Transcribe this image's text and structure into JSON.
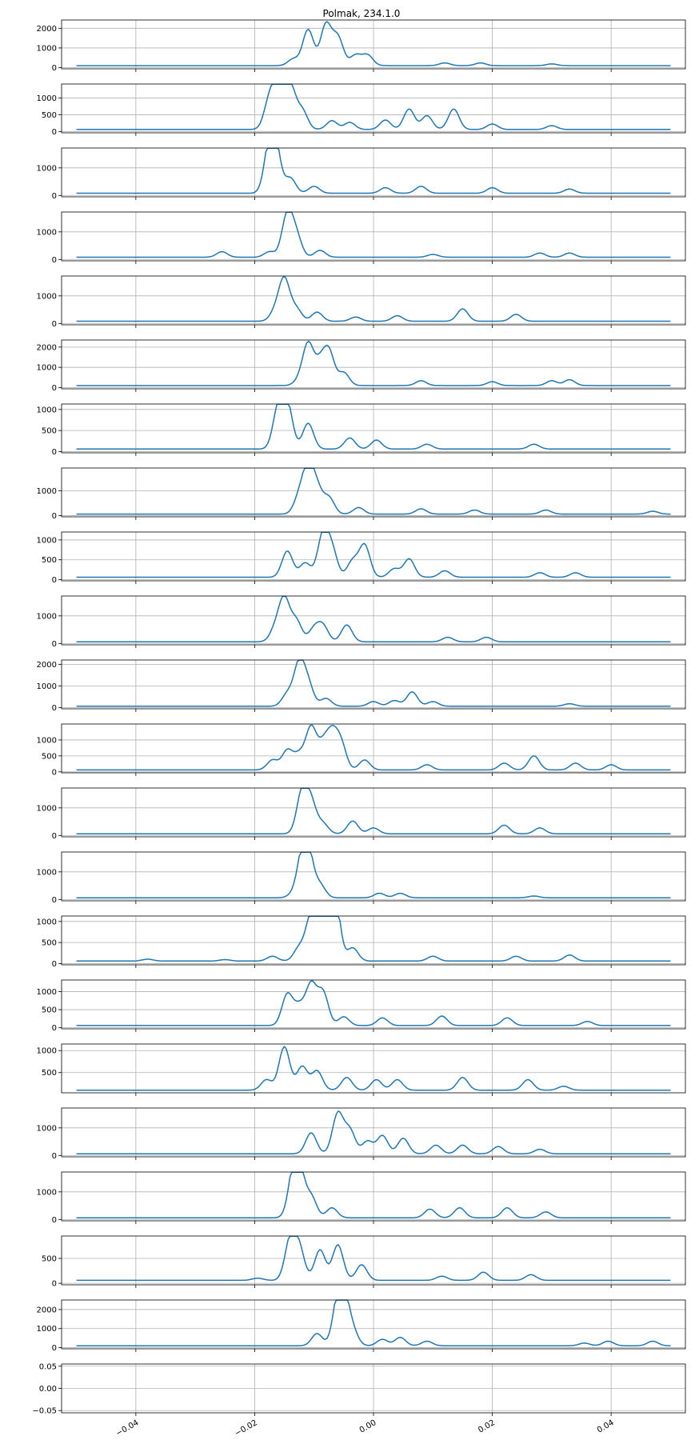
{
  "figure": {
    "title": "Polmak, 234.1.0"
  },
  "colors": {
    "line": "#1f77b4",
    "grid": "#b0b0b0",
    "axes": "#000000"
  },
  "chart_data": {
    "type": "line",
    "title": "Polmak, 234.1.0",
    "xlim": [
      -0.0525,
      0.0525
    ],
    "grid": true,
    "panels": [
      {
        "yticks": [
          0,
          1000,
          2000
        ],
        "ylim": [
          -60,
          2420
        ],
        "baseline": 100,
        "peaks": [
          [
            -0.0135,
            400
          ],
          [
            -0.011,
            1900
          ],
          [
            -0.008,
            2150
          ],
          [
            -0.006,
            1500
          ],
          [
            -0.003,
            600
          ],
          [
            -0.001,
            600
          ],
          [
            0.012,
            200
          ],
          [
            0.018,
            200
          ],
          [
            0.03,
            150
          ]
        ]
      },
      {
        "yticks": [
          0,
          500,
          1000
        ],
        "ylim": [
          -40,
          1420
        ],
        "baseline": 60,
        "peaks": [
          [
            -0.0175,
            900
          ],
          [
            -0.016,
            1250
          ],
          [
            -0.014,
            1300
          ],
          [
            -0.012,
            600
          ],
          [
            -0.007,
            300
          ],
          [
            -0.004,
            250
          ],
          [
            0.002,
            320
          ],
          [
            0.006,
            650
          ],
          [
            0.009,
            450
          ],
          [
            0.0135,
            650
          ],
          [
            0.02,
            200
          ],
          [
            0.03,
            150
          ]
        ]
      },
      {
        "yticks": [
          0,
          1000
        ],
        "ylim": [
          -50,
          1720
        ],
        "baseline": 80,
        "peaks": [
          [
            -0.0175,
            1600
          ],
          [
            -0.0165,
            1500
          ],
          [
            -0.014,
            600
          ],
          [
            -0.01,
            300
          ],
          [
            0.002,
            250
          ],
          [
            0.008,
            300
          ],
          [
            0.02,
            250
          ],
          [
            0.033,
            200
          ]
        ]
      },
      {
        "yticks": [
          0,
          1000
        ],
        "ylim": [
          -50,
          1720
        ],
        "baseline": 80,
        "peaks": [
          [
            -0.0255,
            250
          ],
          [
            -0.0175,
            250
          ],
          [
            -0.0145,
            1600
          ],
          [
            -0.013,
            800
          ],
          [
            -0.009,
            300
          ],
          [
            0.01,
            150
          ],
          [
            0.028,
            200
          ],
          [
            0.033,
            200
          ]
        ]
      },
      {
        "yticks": [
          0,
          1000
        ],
        "ylim": [
          -50,
          1720
        ],
        "baseline": 80,
        "peaks": [
          [
            -0.0165,
            400
          ],
          [
            -0.015,
            1550
          ],
          [
            -0.013,
            500
          ],
          [
            -0.0095,
            380
          ],
          [
            -0.003,
            200
          ],
          [
            0.004,
            250
          ],
          [
            0.015,
            500
          ],
          [
            0.024,
            300
          ]
        ]
      },
      {
        "yticks": [
          0,
          1000,
          2000
        ],
        "ylim": [
          -60,
          2350
        ],
        "baseline": 100,
        "peaks": [
          [
            -0.0125,
            300
          ],
          [
            -0.011,
            2100
          ],
          [
            -0.009,
            1100
          ],
          [
            -0.0075,
            1700
          ],
          [
            -0.005,
            700
          ],
          [
            0.008,
            300
          ],
          [
            0.02,
            250
          ],
          [
            0.03,
            300
          ],
          [
            0.033,
            350
          ]
        ]
      },
      {
        "yticks": [
          0,
          500,
          1000
        ],
        "ylim": [
          -30,
          1130
        ],
        "baseline": 60,
        "peaks": [
          [
            -0.016,
            1000
          ],
          [
            -0.0145,
            1050
          ],
          [
            -0.011,
            650
          ],
          [
            -0.004,
            300
          ],
          [
            0.0005,
            250
          ],
          [
            0.009,
            150
          ],
          [
            0.027,
            150
          ]
        ]
      },
      {
        "yticks": [
          0,
          1000
        ],
        "ylim": [
          -50,
          1920
        ],
        "baseline": 60,
        "peaks": [
          [
            -0.0125,
            700
          ],
          [
            -0.011,
            1850
          ],
          [
            -0.0095,
            1000
          ],
          [
            -0.0075,
            700
          ],
          [
            -0.0025,
            300
          ],
          [
            0.008,
            250
          ],
          [
            0.017,
            200
          ],
          [
            0.029,
            200
          ],
          [
            0.047,
            150
          ]
        ]
      },
      {
        "yticks": [
          0,
          500,
          1000
        ],
        "ylim": [
          -30,
          1200
        ],
        "baseline": 60,
        "peaks": [
          [
            -0.0145,
            700
          ],
          [
            -0.0115,
            400
          ],
          [
            -0.0085,
            1100
          ],
          [
            -0.007,
            700
          ],
          [
            -0.0035,
            450
          ],
          [
            -0.0015,
            850
          ],
          [
            0.0035,
            250
          ],
          [
            0.006,
            500
          ],
          [
            0.012,
            200
          ],
          [
            0.028,
            150
          ],
          [
            0.034,
            150
          ]
        ]
      },
      {
        "yticks": [
          0,
          1000
        ],
        "ylim": [
          -50,
          1720
        ],
        "baseline": 60,
        "peaks": [
          [
            -0.0165,
            500
          ],
          [
            -0.015,
            1550
          ],
          [
            -0.013,
            800
          ],
          [
            -0.01,
            500
          ],
          [
            -0.0085,
            600
          ],
          [
            -0.0045,
            650
          ],
          [
            0.0125,
            200
          ],
          [
            0.019,
            200
          ]
        ]
      },
      {
        "yticks": [
          0,
          1000,
          2000
        ],
        "ylim": [
          -60,
          2200
        ],
        "baseline": 60,
        "peaks": [
          [
            -0.0145,
            600
          ],
          [
            -0.0125,
            2000
          ],
          [
            -0.011,
            1000
          ],
          [
            -0.008,
            400
          ],
          [
            0,
            250
          ],
          [
            0.0035,
            300
          ],
          [
            0.0065,
            700
          ],
          [
            0.01,
            250
          ],
          [
            0.033,
            150
          ]
        ]
      },
      {
        "yticks": [
          0,
          500,
          1000
        ],
        "ylim": [
          -30,
          1500
        ],
        "baseline": 60,
        "peaks": [
          [
            -0.017,
            350
          ],
          [
            -0.0145,
            650
          ],
          [
            -0.0125,
            500
          ],
          [
            -0.0105,
            1350
          ],
          [
            -0.0085,
            750
          ],
          [
            -0.007,
            1050
          ],
          [
            -0.0055,
            850
          ],
          [
            -0.0015,
            350
          ],
          [
            0.009,
            200
          ],
          [
            0.022,
            250
          ],
          [
            0.027,
            480
          ],
          [
            0.034,
            250
          ],
          [
            0.04,
            200
          ]
        ]
      },
      {
        "yticks": [
          0,
          1000
        ],
        "ylim": [
          -50,
          1720
        ],
        "baseline": 60,
        "peaks": [
          [
            -0.012,
            1550
          ],
          [
            -0.0105,
            1100
          ],
          [
            -0.0085,
            400
          ],
          [
            -0.0035,
            500
          ],
          [
            0,
            250
          ],
          [
            0.022,
            350
          ],
          [
            0.028,
            250
          ]
        ]
      },
      {
        "yticks": [
          0,
          1000
        ],
        "ylim": [
          -50,
          1720
        ],
        "baseline": 60,
        "peaks": [
          [
            -0.0135,
            150
          ],
          [
            -0.012,
            1300
          ],
          [
            -0.011,
            1500
          ],
          [
            -0.009,
            500
          ],
          [
            0.001,
            200
          ],
          [
            0.0045,
            200
          ],
          [
            0.027,
            100
          ]
        ]
      },
      {
        "yticks": [
          0,
          500,
          1000
        ],
        "ylim": [
          -30,
          1130
        ],
        "baseline": 60,
        "peaks": [
          [
            -0.038,
            80
          ],
          [
            -0.025,
            70
          ],
          [
            -0.017,
            150
          ],
          [
            -0.0125,
            350
          ],
          [
            -0.0105,
            1050
          ],
          [
            -0.009,
            800
          ],
          [
            -0.007,
            1000
          ],
          [
            -0.0065,
            1050
          ],
          [
            -0.0035,
            350
          ],
          [
            0.01,
            150
          ],
          [
            0.024,
            150
          ],
          [
            0.033,
            180
          ]
        ]
      },
      {
        "yticks": [
          0,
          500,
          1000
        ],
        "ylim": [
          -30,
          1320
        ],
        "baseline": 60,
        "peaks": [
          [
            -0.0145,
            900
          ],
          [
            -0.0125,
            550
          ],
          [
            -0.0105,
            1150
          ],
          [
            -0.0085,
            950
          ],
          [
            -0.005,
            280
          ],
          [
            0.0015,
            250
          ],
          [
            0.0115,
            300
          ],
          [
            0.0225,
            250
          ],
          [
            0.036,
            150
          ]
        ]
      },
      {
        "yticks": [
          500,
          1000
        ],
        "ylim": [
          40,
          1150
        ],
        "baseline": 100,
        "peaks": [
          [
            -0.018,
            300
          ],
          [
            -0.015,
            1050
          ],
          [
            -0.012,
            600
          ],
          [
            -0.0095,
            500
          ],
          [
            -0.0045,
            350
          ],
          [
            0.0005,
            300
          ],
          [
            0.004,
            300
          ],
          [
            0.015,
            350
          ],
          [
            0.026,
            300
          ],
          [
            0.032,
            150
          ]
        ]
      },
      {
        "yticks": [
          0,
          1000
        ],
        "ylim": [
          -50,
          1720
        ],
        "baseline": 60,
        "peaks": [
          [
            -0.0105,
            800
          ],
          [
            -0.006,
            1500
          ],
          [
            -0.004,
            900
          ],
          [
            -0.001,
            500
          ],
          [
            0.0015,
            700
          ],
          [
            0.005,
            600
          ],
          [
            0.0105,
            350
          ],
          [
            0.015,
            350
          ],
          [
            0.021,
            300
          ],
          [
            0.028,
            200
          ]
        ]
      },
      {
        "yticks": [
          0,
          1000
        ],
        "ylim": [
          -50,
          1720
        ],
        "baseline": 60,
        "peaks": [
          [
            -0.0135,
            1400
          ],
          [
            -0.0125,
            1600
          ],
          [
            -0.0105,
            800
          ],
          [
            -0.007,
            400
          ],
          [
            0.0095,
            350
          ],
          [
            0.0145,
            400
          ],
          [
            0.0225,
            400
          ],
          [
            0.029,
            250
          ]
        ]
      },
      {
        "yticks": [
          0,
          500
        ],
        "ylim": [
          -30,
          950
        ],
        "baseline": 60,
        "peaks": [
          [
            -0.0195,
            80
          ],
          [
            -0.014,
            850
          ],
          [
            -0.0125,
            650
          ],
          [
            -0.009,
            650
          ],
          [
            -0.006,
            750
          ],
          [
            -0.002,
            350
          ],
          [
            0.0115,
            120
          ],
          [
            0.0185,
            200
          ],
          [
            0.0265,
            150
          ]
        ]
      },
      {
        "yticks": [
          0,
          1000,
          2000
        ],
        "ylim": [
          -60,
          2500
        ],
        "baseline": 100,
        "peaks": [
          [
            -0.0095,
            700
          ],
          [
            -0.006,
            2100
          ],
          [
            -0.005,
            2300
          ],
          [
            -0.0035,
            800
          ],
          [
            0.0015,
            400
          ],
          [
            0.0045,
            500
          ],
          [
            0.009,
            300
          ],
          [
            0.0355,
            200
          ],
          [
            0.0395,
            300
          ],
          [
            0.047,
            300
          ]
        ]
      },
      {
        "yticks": [
          -0.05,
          0.0,
          0.05
        ],
        "ytick_labels": [
          "−0.05",
          "0.00",
          "0.05"
        ],
        "ylim": [
          -0.055,
          0.055
        ],
        "empty": true,
        "xticks": [
          -0.04,
          -0.02,
          0.0,
          0.02,
          0.04
        ],
        "xtick_labels": [
          "−0.04",
          "−0.02",
          "0.00",
          "0.02",
          "0.04"
        ]
      }
    ]
  }
}
